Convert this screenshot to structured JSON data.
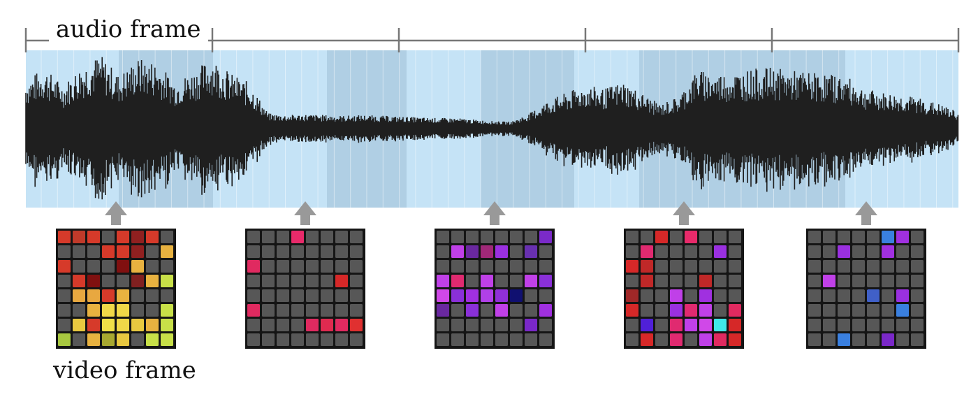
{
  "labels": {
    "audio_frame": "audio frame",
    "video_frame": "video frame"
  },
  "colors": {
    "timeline_bg": "#c5e3f6",
    "highlight_bg": "#a8c8de",
    "waveform": "#1f1f1f",
    "ruler": "#777777",
    "arrow": "#999999",
    "grid_frame": "#151515",
    "pad_off": "#575757"
  },
  "audio_segments": 5,
  "waveform_levels": [
    0.62,
    0.78,
    0.55,
    0.82,
    0.95,
    0.68,
    0.9,
    0.86,
    0.6,
    0.74,
    0.92,
    0.7,
    0.58,
    0.18,
    0.16,
    0.17,
    0.16,
    0.15,
    0.16,
    0.15,
    0.14,
    0.13,
    0.12,
    0.12,
    0.1,
    0.08,
    0.07,
    0.18,
    0.35,
    0.45,
    0.55,
    0.5,
    0.6,
    0.45,
    0.3,
    0.4,
    0.75,
    0.7,
    0.72,
    0.76,
    0.78,
    0.74,
    0.72,
    0.7,
    0.66,
    0.5,
    0.45,
    0.42,
    0.38,
    0.3,
    0.2
  ],
  "video_frames": [
    {
      "cells": [
        "#d63a2a",
        "#c03a2a",
        "#d63a2a",
        "#575757",
        "#d63a2a",
        "#902020",
        "#d63a2a",
        "#575757",
        "#575757",
        "#575757",
        "#575757",
        "#d63a2a",
        "#d63a2a",
        "#902020",
        "#575757",
        "#e8b240",
        "#d63a2a",
        "#575757",
        "#575757",
        "#575757",
        "#801010",
        "#e8b240",
        "#575757",
        "#575757",
        "#575757",
        "#d63a2a",
        "#801010",
        "#575757",
        "#575757",
        "#802020",
        "#e8b240",
        "#c8e048",
        "#575757",
        "#e8a840",
        "#e8a840",
        "#d63a2a",
        "#e8b240",
        "#575757",
        "#575757",
        "#575757",
        "#575757",
        "#575757",
        "#e8b240",
        "#f0d848",
        "#f0d848",
        "#575757",
        "#575757",
        "#c8e048",
        "#575757",
        "#e8c840",
        "#d63a2a",
        "#f0e048",
        "#f0d848",
        "#e8c840",
        "#e8b240",
        "#c8e048",
        "#a8c840",
        "#575757",
        "#e8b240",
        "#a8a830",
        "#e8c840",
        "#575757",
        "#c8e048",
        "#c8e048"
      ]
    },
    {
      "cells": [
        "#575757",
        "#575757",
        "#575757",
        "#e82a6a",
        "#575757",
        "#575757",
        "#575757",
        "#575757",
        "#575757",
        "#575757",
        "#575757",
        "#575757",
        "#575757",
        "#575757",
        "#575757",
        "#575757",
        "#e02a60",
        "#575757",
        "#575757",
        "#575757",
        "#575757",
        "#575757",
        "#575757",
        "#575757",
        "#575757",
        "#575757",
        "#575757",
        "#575757",
        "#575757",
        "#575757",
        "#d62828",
        "#575757",
        "#575757",
        "#575757",
        "#575757",
        "#575757",
        "#575757",
        "#575757",
        "#575757",
        "#575757",
        "#e02a60",
        "#575757",
        "#575757",
        "#575757",
        "#575757",
        "#575757",
        "#575757",
        "#575757",
        "#575757",
        "#575757",
        "#575757",
        "#575757",
        "#e02a60",
        "#e02a50",
        "#e02a60",
        "#e03030",
        "#575757",
        "#575757",
        "#575757",
        "#575757",
        "#575757",
        "#575757",
        "#575757",
        "#575757"
      ]
    },
    {
      "cells": [
        "#575757",
        "#575757",
        "#575757",
        "#575757",
        "#575757",
        "#575757",
        "#575757",
        "#7a2ac8",
        "#575757",
        "#c040e8",
        "#6a28a0",
        "#a02878",
        "#9a30e0",
        "#575757",
        "#6830b0",
        "#575757",
        "#575757",
        "#575757",
        "#575757",
        "#575757",
        "#575757",
        "#575757",
        "#575757",
        "#575757",
        "#c040e8",
        "#e02a70",
        "#575757",
        "#c040e8",
        "#575757",
        "#575757",
        "#c040e8",
        "#8a30d8",
        "#d048e8",
        "#8a30d8",
        "#a030e0",
        "#b040e8",
        "#9030d8",
        "#101070",
        "#575757",
        "#575757",
        "#6a28a0",
        "#575757",
        "#8a30d8",
        "#575757",
        "#c040e8",
        "#575757",
        "#575757",
        "#a030e0",
        "#575757",
        "#575757",
        "#575757",
        "#575757",
        "#575757",
        "#575757",
        "#7a28c8",
        "#575757",
        "#575757",
        "#575757",
        "#575757",
        "#575757",
        "#575757",
        "#575757",
        "#575757",
        "#575757"
      ]
    },
    {
      "cells": [
        "#575757",
        "#575757",
        "#d62828",
        "#575757",
        "#e82a6a",
        "#575757",
        "#575757",
        "#575757",
        "#575757",
        "#e02a70",
        "#575757",
        "#575757",
        "#575757",
        "#575757",
        "#9a30e0",
        "#575757",
        "#d62828",
        "#c02828",
        "#575757",
        "#575757",
        "#575757",
        "#575757",
        "#575757",
        "#575757",
        "#575757",
        "#c02828",
        "#575757",
        "#575757",
        "#575757",
        "#c02828",
        "#575757",
        "#575757",
        "#a02828",
        "#575757",
        "#575757",
        "#c040e8",
        "#575757",
        "#a030e0",
        "#575757",
        "#575757",
        "#d62828",
        "#575757",
        "#575757",
        "#9a30e0",
        "#e02a70",
        "#c040e8",
        "#575757",
        "#e02a60",
        "#575757",
        "#5020d8",
        "#575757",
        "#e02a70",
        "#c040e8",
        "#d048e8",
        "#40e8e8",
        "#d62828",
        "#575757",
        "#d62828",
        "#575757",
        "#e02a70",
        "#575757",
        "#c040e8",
        "#e02a60",
        "#d62828"
      ]
    },
    {
      "cells": [
        "#575757",
        "#575757",
        "#575757",
        "#575757",
        "#575757",
        "#3a80e0",
        "#a030e0",
        "#575757",
        "#575757",
        "#575757",
        "#9a30e0",
        "#575757",
        "#575757",
        "#a030e0",
        "#575757",
        "#575757",
        "#575757",
        "#575757",
        "#575757",
        "#575757",
        "#575757",
        "#575757",
        "#575757",
        "#575757",
        "#575757",
        "#c040e8",
        "#575757",
        "#575757",
        "#575757",
        "#575757",
        "#575757",
        "#575757",
        "#575757",
        "#575757",
        "#575757",
        "#575757",
        "#4060c8",
        "#575757",
        "#9a30e0",
        "#575757",
        "#575757",
        "#575757",
        "#575757",
        "#575757",
        "#575757",
        "#575757",
        "#3a80e0",
        "#575757",
        "#575757",
        "#575757",
        "#575757",
        "#575757",
        "#575757",
        "#575757",
        "#575757",
        "#575757",
        "#575757",
        "#575757",
        "#3a80e0",
        "#575757",
        "#575757",
        "#7a28c8",
        "#575757",
        "#575757"
      ]
    }
  ]
}
